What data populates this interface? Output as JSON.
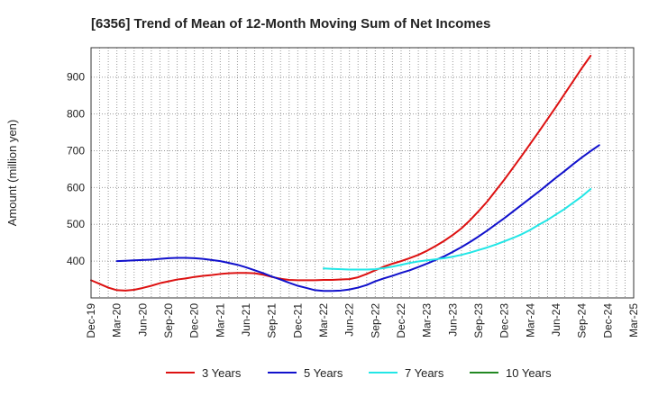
{
  "chart_data": {
    "type": "line",
    "title": "[6356]  Trend of Mean of 12-Month Moving Sum of Net Incomes",
    "xlabel": "",
    "ylabel": "Amount (million yen)",
    "ylim": [
      300,
      980
    ],
    "yticks": [
      400,
      500,
      600,
      700,
      800,
      900
    ],
    "grid": true,
    "legend_position": "bottom",
    "x_tick_labels": [
      "Dec-19",
      "Mar-20",
      "Jun-20",
      "Sep-20",
      "Dec-20",
      "Mar-21",
      "Jun-21",
      "Sep-21",
      "Dec-21",
      "Mar-22",
      "Jun-22",
      "Sep-22",
      "Dec-22",
      "Mar-23",
      "Jun-23",
      "Sep-23",
      "Dec-23",
      "Mar-24",
      "Jun-24",
      "Sep-24",
      "Dec-24",
      "Mar-25"
    ],
    "series": [
      {
        "name": "3 Years",
        "color": "#dd1111",
        "start_index": 0,
        "values": [
          348,
          338,
          328,
          321,
          320,
          322,
          327,
          333,
          340,
          345,
          350,
          353,
          357,
          360,
          362,
          365,
          367,
          368,
          368,
          367,
          363,
          357,
          352,
          349,
          348,
          348,
          348,
          349,
          349,
          350,
          351,
          356,
          365,
          375,
          385,
          393,
          400,
          408,
          417,
          428,
          441,
          455,
          471,
          489,
          511,
          536,
          562,
          592,
          622,
          654,
          686,
          719,
          752,
          786,
          820,
          855,
          890,
          925,
          958
        ]
      },
      {
        "name": "5 Years",
        "color": "#1111cc",
        "start_index": 3,
        "values": [
          400,
          401,
          402,
          403,
          404,
          406,
          408,
          409,
          409,
          408,
          406,
          403,
          400,
          395,
          390,
          383,
          375,
          367,
          358,
          350,
          341,
          333,
          327,
          321,
          319,
          319,
          320,
          323,
          328,
          335,
          345,
          353,
          360,
          368,
          375,
          384,
          393,
          403,
          413,
          425,
          438,
          452,
          467,
          483,
          500,
          517,
          535,
          553,
          571,
          589,
          608,
          627,
          645,
          664,
          682,
          699,
          715
        ]
      },
      {
        "name": "7 Years",
        "color": "#22e6e6",
        "start_index": 27,
        "values": [
          380,
          379,
          378,
          377,
          377,
          377,
          378,
          381,
          385,
          390,
          395,
          399,
          402,
          405,
          408,
          412,
          417,
          423,
          430,
          437,
          445,
          454,
          463,
          473,
          485,
          499,
          512,
          527,
          542,
          559,
          576,
          596
        ]
      },
      {
        "name": "10 Years",
        "color": "#228822",
        "start_index": 0,
        "values": []
      }
    ]
  }
}
